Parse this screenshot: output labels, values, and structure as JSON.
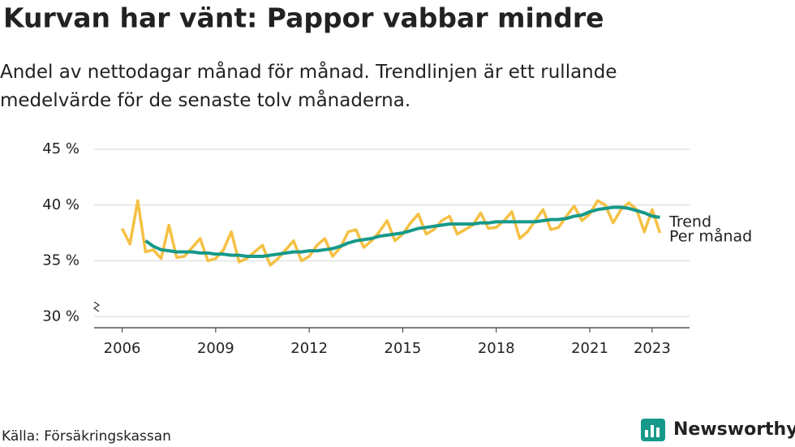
{
  "chart_data": {
    "type": "line",
    "title": "Kurvan har vänt: Pappor vabbar mindre",
    "subtitle": "Andel av nettodagar månad för månad. Trendlinjen är ett rullande medelvärde för de senaste tolv månaderna.",
    "source": "Källa: Försäkringskassan",
    "brand": "Newsworthy",
    "x": [
      2006,
      2006.25,
      2006.5,
      2006.75,
      2007,
      2007.25,
      2007.5,
      2007.75,
      2008,
      2008.25,
      2008.5,
      2008.75,
      2009,
      2009.25,
      2009.5,
      2009.75,
      2010,
      2010.25,
      2010.5,
      2010.75,
      2011,
      2011.25,
      2011.5,
      2011.75,
      2012,
      2012.25,
      2012.5,
      2012.75,
      2013,
      2013.25,
      2013.5,
      2013.75,
      2014,
      2014.25,
      2014.5,
      2014.75,
      2015,
      2015.25,
      2015.5,
      2015.75,
      2016,
      2016.25,
      2016.5,
      2016.75,
      2017,
      2017.25,
      2017.5,
      2017.75,
      2018,
      2018.25,
      2018.5,
      2018.75,
      2019,
      2019.25,
      2019.5,
      2019.75,
      2020,
      2020.25,
      2020.5,
      2020.75,
      2021,
      2021.25,
      2021.5,
      2021.75,
      2022,
      2022.25,
      2022.5,
      2022.75,
      2023,
      2023.25
    ],
    "series": [
      {
        "name": "Per månad",
        "color": "#f5c043",
        "values": [
          37.9,
          36.5,
          40.4,
          35.8,
          36.0,
          35.2,
          38.2,
          35.3,
          35.4,
          36.2,
          37.0,
          35.0,
          35.2,
          36.0,
          37.6,
          34.9,
          35.2,
          35.8,
          36.4,
          34.6,
          35.2,
          36.0,
          36.8,
          35.0,
          35.4,
          36.4,
          37.0,
          35.4,
          36.2,
          37.6,
          37.8,
          36.2,
          36.8,
          37.6,
          38.6,
          36.8,
          37.4,
          38.4,
          39.2,
          37.4,
          37.8,
          38.6,
          39.0,
          37.4,
          37.8,
          38.2,
          39.3,
          37.9,
          38.0,
          38.6,
          39.4,
          37.0,
          37.6,
          38.6,
          39.6,
          37.8,
          38.0,
          39.0,
          39.9,
          38.6,
          39.2,
          40.4,
          40.0,
          38.4,
          39.6,
          40.2,
          39.6,
          37.6,
          39.6,
          37.5
        ]
      },
      {
        "name": "Trend",
        "color": "#16998a",
        "values": [
          null,
          null,
          null,
          36.8,
          36.3,
          36.0,
          35.9,
          35.8,
          35.8,
          35.8,
          35.7,
          35.7,
          35.6,
          35.6,
          35.5,
          35.5,
          35.4,
          35.4,
          35.4,
          35.5,
          35.6,
          35.7,
          35.8,
          35.8,
          35.9,
          35.9,
          36.0,
          36.1,
          36.3,
          36.6,
          36.8,
          36.9,
          37.0,
          37.2,
          37.3,
          37.4,
          37.5,
          37.7,
          37.9,
          38.0,
          38.1,
          38.2,
          38.3,
          38.3,
          38.3,
          38.3,
          38.4,
          38.4,
          38.5,
          38.5,
          38.5,
          38.5,
          38.5,
          38.5,
          38.6,
          38.7,
          38.7,
          38.8,
          39.0,
          39.1,
          39.4,
          39.6,
          39.7,
          39.8,
          39.8,
          39.7,
          39.5,
          39.3,
          39.0,
          38.9
        ]
      }
    ],
    "xlim": [
      2005.1,
      2024.2
    ],
    "xticks": [
      2006,
      2009,
      2012,
      2015,
      2018,
      2021,
      2023
    ],
    "ylim": [
      29,
      45
    ],
    "yticks": [
      {
        "value": 30,
        "label": "30 %"
      },
      {
        "value": 35,
        "label": "35 %"
      },
      {
        "value": 40,
        "label": "40 %"
      },
      {
        "value": 45,
        "label": "45 %"
      }
    ],
    "grid": true
  }
}
